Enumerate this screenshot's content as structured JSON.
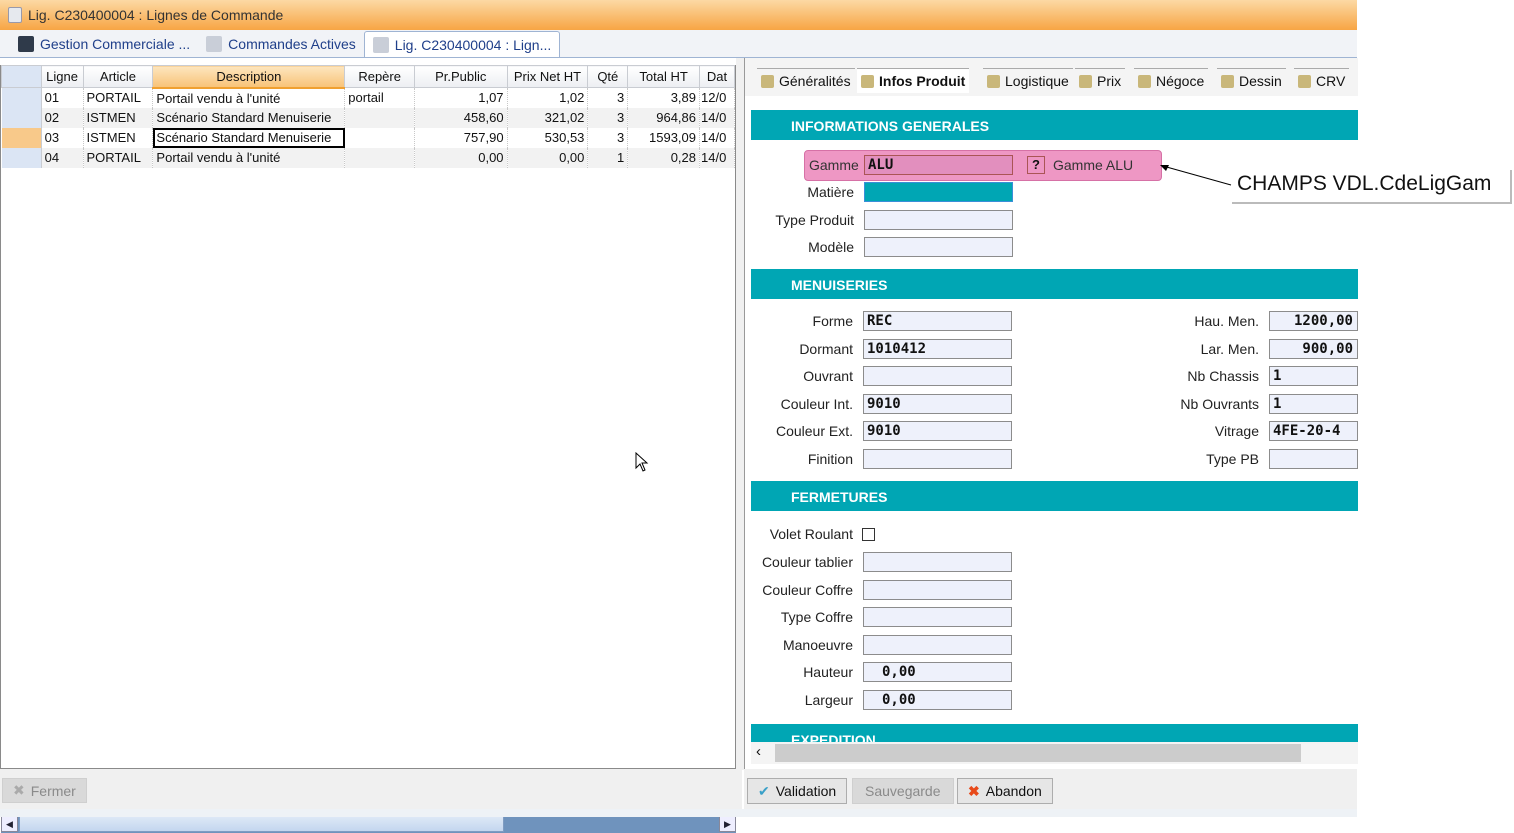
{
  "window": {
    "title": "Lig. C230400004 : Lignes de Commande"
  },
  "tabs": [
    {
      "label": "Gestion Commerciale ..."
    },
    {
      "label": "Commandes Actives"
    },
    {
      "label": "Lig. C230400004 : Lign..."
    }
  ],
  "grid": {
    "columns": [
      "Ligne",
      "Article",
      "Description",
      "Repère",
      "Pr.Public",
      "Prix Net HT",
      "Qté",
      "Total HT",
      "Dat"
    ],
    "rows": [
      [
        "01",
        "PORTAIL",
        "Portail vendu à l'unité",
        "portail",
        "1,07",
        "1,02",
        "3",
        "3,89",
        "12/0"
      ],
      [
        "02",
        "ISTMEN",
        "Scénario Standard Menuiserie",
        "",
        "458,60",
        "321,02",
        "3",
        "964,86",
        "14/0"
      ],
      [
        "03",
        "ISTMEN",
        "Scénario Standard Menuiserie",
        "",
        "757,90",
        "530,53",
        "3",
        "1593,09",
        "14/0"
      ],
      [
        "04",
        "PORTAIL",
        "Portail vendu à l'unité",
        "",
        "0,00",
        "0,00",
        "1",
        "0,28",
        "14/0"
      ]
    ],
    "selected_row": 2
  },
  "panel_tabs": [
    {
      "label": "Généralités"
    },
    {
      "label": "Infos Produit"
    },
    {
      "label": "Logistique"
    },
    {
      "label": "Prix"
    },
    {
      "label": "Négoce"
    },
    {
      "label": "Dessin"
    },
    {
      "label": "CRV"
    }
  ],
  "sections": {
    "general": "INFORMATIONS GENERALES",
    "menuiseries": "MENUISERIES",
    "fermetures": "FERMETURES",
    "expedition": "EXPEDITION"
  },
  "general": {
    "gamme_label": "Gamme",
    "gamme_value": "ALU",
    "gamme_help": "?",
    "gamme_desc": "Gamme ALU",
    "fields": [
      {
        "label": "Matière",
        "value": ""
      },
      {
        "label": "Type Produit",
        "value": ""
      },
      {
        "label": "Modèle",
        "value": ""
      }
    ]
  },
  "menuiseries": {
    "left": [
      {
        "label": "Forme",
        "value": "REC"
      },
      {
        "label": "Dormant",
        "value": "1010412"
      },
      {
        "label": "Ouvrant",
        "value": ""
      },
      {
        "label": "Couleur Int.",
        "value": "9010"
      },
      {
        "label": "Couleur Ext.",
        "value": "9010"
      },
      {
        "label": "Finition",
        "value": ""
      }
    ],
    "right": [
      {
        "label": "Hau. Men.",
        "value": "1200,00"
      },
      {
        "label": "Lar. Men.",
        "value": "900,00"
      },
      {
        "label": "Nb Chassis",
        "value": "1"
      },
      {
        "label": "Nb Ouvrants",
        "value": "1"
      },
      {
        "label": "Vitrage",
        "value": "4FE-20-4"
      },
      {
        "label": "Type PB",
        "value": ""
      }
    ]
  },
  "fermetures": {
    "volet_label": "Volet Roulant",
    "volet_checked": false,
    "fields": [
      {
        "label": "Couleur tablier",
        "value": ""
      },
      {
        "label": "Couleur Coffre",
        "value": ""
      },
      {
        "label": "Type Coffre",
        "value": ""
      },
      {
        "label": "Manoeuvre",
        "value": ""
      },
      {
        "label": "Hauteur",
        "value": "0,00"
      },
      {
        "label": "Largeur",
        "value": "0,00"
      }
    ]
  },
  "buttons": {
    "close": "Fermer",
    "validate": "Validation",
    "save": "Sauvegarde",
    "abort": "Abandon"
  },
  "annotation": "CHAMPS VDL.CdeLigGam",
  "colors": {
    "section": "#00a6b4",
    "highlight": "#ee97c4",
    "titlebar": "#f7a544"
  }
}
